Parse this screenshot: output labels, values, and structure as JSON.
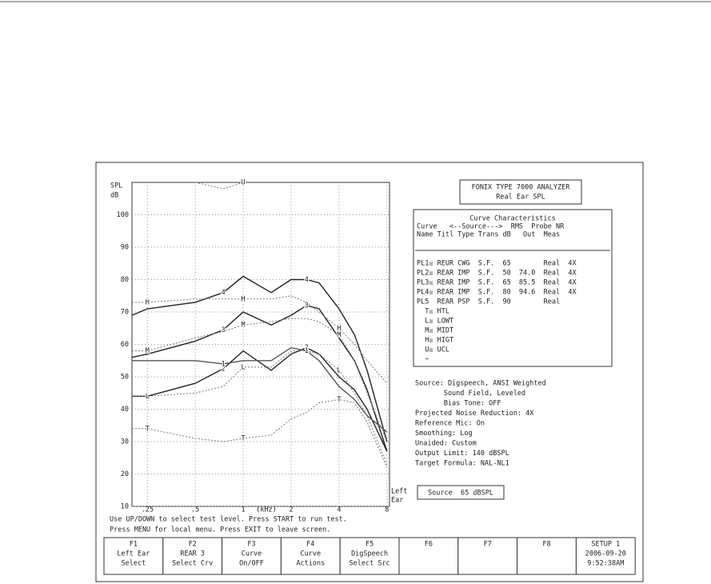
{
  "header": {
    "title": "FONIX TYPE 7000 ANALYZER",
    "subtitle": "Real Ear SPL"
  },
  "chart_data": {
    "type": "line",
    "y_label_top": "SPL",
    "y_label_bottom": "dB",
    "x_label": "(kHz)",
    "side_label": [
      "Left",
      "Ear"
    ],
    "x": [
      0.2,
      0.25,
      0.5,
      0.75,
      1,
      1.5,
      2,
      2.5,
      3,
      4,
      5,
      6,
      8
    ],
    "xlim": [
      0.2,
      8.3
    ],
    "log_x": true,
    "xticks": [
      {
        "value": 0.25,
        "label": ".25"
      },
      {
        "value": 0.5,
        "label": ".5"
      },
      1,
      2,
      4,
      8
    ],
    "ylim": [
      10,
      110
    ],
    "yticks": [
      10,
      20,
      30,
      40,
      50,
      60,
      70,
      80,
      90,
      100
    ],
    "grid": true,
    "series": [
      {
        "name": "4",
        "color": "#222",
        "dashed": false,
        "values": [
          69,
          71,
          73,
          76,
          81,
          76,
          80,
          80,
          79,
          71,
          63,
          52,
          30
        ]
      },
      {
        "name": "3",
        "color": "#222",
        "dashed": false,
        "values": [
          56,
          57,
          61,
          64.5,
          70,
          66,
          69,
          72,
          71,
          62,
          55,
          46,
          27
        ]
      },
      {
        "name": "2",
        "color": "#222",
        "dashed": false,
        "values": [
          44,
          44,
          48,
          52.5,
          58,
          52,
          57,
          59,
          57,
          50,
          46,
          40,
          27
        ]
      },
      {
        "name": "1",
        "color": "#555",
        "dashed": false,
        "values": [
          55,
          55,
          55,
          54,
          55,
          55,
          59,
          58,
          55,
          47,
          43,
          38,
          33
        ]
      },
      {
        "name": "H",
        "color": "#777",
        "dashed": true,
        "values": [
          73,
          73,
          74,
          74,
          74,
          74,
          75,
          73,
          70,
          65,
          60,
          55,
          48
        ]
      },
      {
        "name": "M",
        "color": "#777",
        "dashed": true,
        "values": [
          58,
          58,
          62,
          64,
          66,
          67,
          68,
          68,
          67,
          63,
          55,
          45,
          30
        ]
      },
      {
        "name": "L",
        "color": "#777",
        "dashed": true,
        "values": [
          44,
          44,
          45,
          47,
          53,
          53,
          58,
          58,
          57,
          52,
          45,
          38,
          23
        ]
      },
      {
        "name": "T",
        "color": "#777",
        "dashed": true,
        "values": [
          34,
          34,
          31,
          30,
          31,
          32,
          37,
          39,
          42,
          43,
          42,
          36,
          22
        ]
      },
      {
        "name": "U",
        "color": "#777",
        "dashed": true,
        "values": [
          null,
          null,
          110,
          108,
          110,
          null,
          null,
          null,
          null,
          null,
          null,
          null,
          null
        ]
      }
    ]
  },
  "curve_table": {
    "title": "Curve Characteristics",
    "header": [
      "Curve   <--Source--->  RMS  Probe NR",
      "Name Titl Type Trans dB   Out  Meas"
    ],
    "rows": [
      "PL1☒ REUR CWG  S.F.  65        Real  4X",
      "PL2☒ REAR IMP  S.F.  50  74.0  Real  4X",
      "PL3☒ REAR IMP  S.F.  65  85.5  Real  4X",
      "PL4☒ REAR IMP  S.F.  80  94.6  Real  4X",
      "PL5  REAR PSP  S.F.  90        Real",
      "  T☒ HTL",
      "  L☒ LOWT",
      "  M☒ MIDT",
      "  H☒ HIGT",
      "  U☒ UCL",
      "  ~"
    ]
  },
  "settings": [
    "Source: Digspeech, ANSI Weighted",
    "       Sound Field, Leveled",
    "       Bias Tone: OFF",
    "Projected Noise Reduction: 4X",
    "Reference Mic: On",
    "Smoothing: Log",
    "Unaided: Custom",
    "Output Limit: 140 dBSPL",
    "Target Formula: NAL-NL1"
  ],
  "source_box": "Source  65 dBSPL",
  "instructions": [
    "Use UP/DOWN to select test level. Press START to run test.",
    "Press MENU for local menu. Press EXIT to leave screen."
  ],
  "function_keys": [
    [
      "F1",
      "Left Ear",
      "Select"
    ],
    [
      "F2",
      "REAR 3",
      "Select Crv"
    ],
    [
      "F3",
      "Curve",
      "On/OFF"
    ],
    [
      "F4",
      "Curve",
      "Actions"
    ],
    [
      "F5",
      "DigSpeech",
      "Select Src"
    ],
    [
      "F6"
    ],
    [
      "F7"
    ],
    [
      "F8"
    ],
    [
      "SETUP 1",
      "2006-09-20",
      "9:52:38AM"
    ]
  ]
}
